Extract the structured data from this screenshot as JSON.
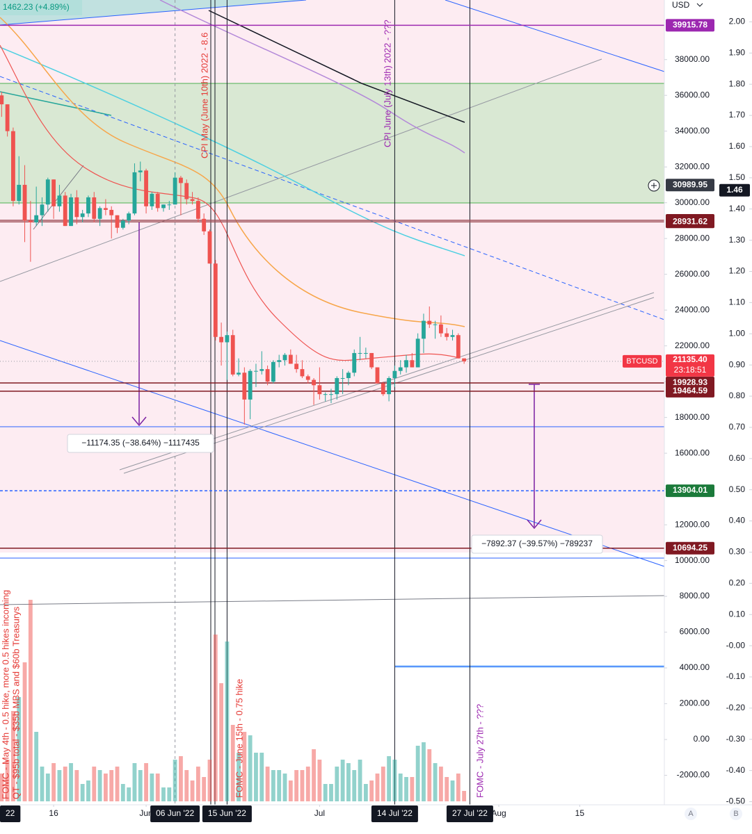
{
  "chart_data": {
    "type": "candlestick",
    "symbol_change": "1462.23 (+4.89%)",
    "currency": "USD",
    "up_color": "#26a69a",
    "down_color": "#ef5350",
    "x": [
      "2022-05-07",
      "2022-05-08",
      "2022-05-09",
      "2022-05-10",
      "2022-05-11",
      "2022-05-12",
      "2022-05-13",
      "2022-05-14",
      "2022-05-15",
      "2022-05-16",
      "2022-05-17",
      "2022-05-18",
      "2022-05-19",
      "2022-05-20",
      "2022-05-21",
      "2022-05-22",
      "2022-05-23",
      "2022-05-24",
      "2022-05-25",
      "2022-05-26",
      "2022-05-27",
      "2022-05-28",
      "2022-05-29",
      "2022-05-30",
      "2022-05-31",
      "2022-06-01",
      "2022-06-02",
      "2022-06-03",
      "2022-06-04",
      "2022-06-05",
      "2022-06-06",
      "2022-06-07",
      "2022-06-08",
      "2022-06-09",
      "2022-06-10",
      "2022-06-11",
      "2022-06-12",
      "2022-06-13",
      "2022-06-14",
      "2022-06-15",
      "2022-06-16",
      "2022-06-17",
      "2022-06-18",
      "2022-06-19",
      "2022-06-20",
      "2022-06-21",
      "2022-06-22",
      "2022-06-23",
      "2022-06-24",
      "2022-06-25",
      "2022-06-26",
      "2022-06-27",
      "2022-06-28",
      "2022-06-29",
      "2022-06-30",
      "2022-07-01",
      "2022-07-02",
      "2022-07-03",
      "2022-07-04",
      "2022-07-05",
      "2022-07-06",
      "2022-07-07",
      "2022-07-08",
      "2022-07-09",
      "2022-07-10",
      "2022-07-11",
      "2022-07-12",
      "2022-07-13",
      "2022-07-14",
      "2022-07-15",
      "2022-07-16",
      "2022-07-17",
      "2022-07-18",
      "2022-07-19",
      "2022-07-20",
      "2022-07-21",
      "2022-07-22",
      "2022-07-23",
      "2022-07-24",
      "2022-07-25",
      "2022-07-26"
    ],
    "open": [
      36000,
      35500,
      34000,
      30100,
      31000,
      29000,
      28900,
      29300,
      29900,
      31300,
      29800,
      30400,
      28700,
      30300,
      29200,
      29400,
      30300,
      29100,
      29700,
      29600,
      29300,
      28600,
      29000,
      29400,
      31700,
      31800,
      29800,
      30500,
      29700,
      29900,
      29900,
      31400,
      31100,
      30200,
      30100,
      29100,
      28400,
      26600,
      22500,
      22200,
      22600,
      20400,
      20500,
      19000,
      20600,
      20600,
      20700,
      20000,
      21100,
      21200,
      21500,
      21000,
      20700,
      20300,
      20100,
      19800,
      19300,
      19300,
      19300,
      20200,
      20200,
      20500,
      21600,
      21600,
      21600,
      20800,
      19900,
      19300,
      20200,
      20600,
      20800,
      21200,
      20800,
      22400,
      23400,
      23200,
      23200,
      22700,
      22500,
      22600,
      21300
    ],
    "high": [
      36200,
      35500,
      34200,
      32600,
      32100,
      30100,
      30900,
      30300,
      31400,
      31300,
      31000,
      30600,
      30500,
      30700,
      29600,
      30400,
      30600,
      29800,
      30200,
      29800,
      29300,
      29100,
      29500,
      32200,
      32300,
      31900,
      30600,
      30600,
      29900,
      30100,
      31700,
      31500,
      31300,
      30600,
      30300,
      29400,
      28500,
      26800,
      23300,
      22800,
      22900,
      21300,
      20800,
      20700,
      21000,
      21700,
      20900,
      21200,
      21500,
      21600,
      21800,
      21500,
      21200,
      20400,
      20200,
      20800,
      19400,
      19600,
      20300,
      20700,
      20600,
      21800,
      22500,
      21900,
      21600,
      20800,
      20000,
      20300,
      20900,
      21200,
      21500,
      21600,
      22700,
      23800,
      24200,
      23400,
      23700,
      23000,
      22900,
      22700,
      21300
    ],
    "low": [
      34800,
      33700,
      29800,
      29900,
      27800,
      26700,
      28700,
      28700,
      29500,
      29100,
      29500,
      28700,
      28700,
      28800,
      28900,
      29200,
      28900,
      28700,
      29300,
      28000,
      28300,
      28500,
      28800,
      29300,
      31200,
      29400,
      29600,
      29500,
      29500,
      29600,
      29900,
      29300,
      29900,
      29900,
      28900,
      28200,
      26600,
      22300,
      20900,
      20100,
      20300,
      20300,
      17600,
      17900,
      19700,
      20400,
      19800,
      19900,
      20800,
      20900,
      21000,
      20500,
      20200,
      19900,
      18700,
      19000,
      18900,
      18800,
      19000,
      19300,
      19800,
      20300,
      21200,
      21300,
      20700,
      19900,
      19200,
      18900,
      19700,
      20400,
      20500,
      20800,
      20800,
      21600,
      23000,
      22400,
      22500,
      22300,
      22300,
      21300,
      21000
    ],
    "close": [
      35500,
      34000,
      30100,
      31000,
      29000,
      28900,
      29300,
      29900,
      31300,
      29800,
      30400,
      28700,
      30300,
      29200,
      29400,
      30300,
      29100,
      29700,
      29600,
      29300,
      28600,
      29000,
      29400,
      31700,
      31800,
      29800,
      30500,
      29700,
      29900,
      29900,
      31400,
      31100,
      30200,
      30100,
      29100,
      28400,
      26600,
      22500,
      22200,
      22600,
      20400,
      20500,
      19000,
      20600,
      20600,
      20700,
      20000,
      21100,
      21200,
      21500,
      21000,
      20700,
      20300,
      20100,
      19800,
      19300,
      19300,
      19300,
      20200,
      20200,
      20500,
      21600,
      21600,
      21600,
      20800,
      19900,
      19300,
      20200,
      20600,
      20800,
      21200,
      20800,
      22400,
      23400,
      23200,
      23200,
      22700,
      22500,
      22600,
      21300,
      21135.4
    ],
    "volume": [
      40,
      60,
      130,
      150,
      200,
      290,
      100,
      50,
      40,
      55,
      45,
      50,
      55,
      45,
      25,
      30,
      50,
      45,
      40,
      45,
      50,
      25,
      20,
      55,
      45,
      55,
      40,
      40,
      20,
      20,
      60,
      65,
      45,
      30,
      50,
      35,
      60,
      240,
      170,
      230,
      110,
      70,
      100,
      95,
      70,
      70,
      50,
      45,
      45,
      40,
      30,
      45,
      45,
      50,
      75,
      60,
      25,
      25,
      50,
      60,
      55,
      45,
      60,
      25,
      30,
      40,
      50,
      65,
      60,
      40,
      35,
      35,
      80,
      85,
      75,
      55,
      50,
      35,
      30,
      40,
      15
    ],
    "xlim": [
      "2022-05-06",
      "2022-08-30"
    ],
    "xticks": [
      {
        "value": "2022-05-16",
        "label": "16"
      },
      {
        "value": "2022-06-01",
        "label": "Jun"
      },
      {
        "value": "2022-07-01",
        "label": "Jul"
      },
      {
        "value": "2022-08-01",
        "label": "Aug"
      },
      {
        "value": "2022-08-15",
        "label": "15"
      }
    ],
    "date_markers": [
      {
        "value": "2022-05-04",
        "label": "22"
      },
      {
        "value": "2022-06-06",
        "label": "06 Jun '22",
        "dashed": true
      },
      {
        "value": "2022-06-15",
        "label": "15 Jun '22"
      },
      {
        "value": "2022-07-14",
        "label": "14 Jul '22"
      },
      {
        "value": "2022-07-27",
        "label": "27 Jul '22"
      }
    ],
    "ylim": [
      -3650,
      41330
    ],
    "yticks": [
      {
        "value": 38000,
        "label": "38000.00"
      },
      {
        "value": 36000,
        "label": "36000.00"
      },
      {
        "value": 34000,
        "label": "34000.00"
      },
      {
        "value": 32000,
        "label": "32000.00"
      },
      {
        "value": 30000,
        "label": "30000.00"
      },
      {
        "value": 28000,
        "label": "28000.00"
      },
      {
        "value": 26000,
        "label": "26000.00"
      },
      {
        "value": 24000,
        "label": "24000.00"
      },
      {
        "value": 22000,
        "label": "22000.00"
      },
      {
        "value": 20000,
        "label": "20000.00"
      },
      {
        "value": 18000,
        "label": "18000.00"
      },
      {
        "value": 16000,
        "label": "16000.00"
      },
      {
        "value": 14000,
        "label": "14000.00"
      },
      {
        "value": 12000,
        "label": "12000.00"
      },
      {
        "value": 10000,
        "label": "10000.00"
      },
      {
        "value": 8000,
        "label": "8000.00"
      },
      {
        "value": 6000,
        "label": "6000.00"
      },
      {
        "value": 4000,
        "label": "4000.00"
      },
      {
        "value": 2000,
        "label": "2000.00"
      },
      {
        "value": 0,
        "label": "0.00"
      },
      {
        "value": -2000,
        "label": "-2000.00"
      }
    ],
    "y2lim": [
      -0.51,
      2.07
    ],
    "y2ticks": [
      {
        "value": 2,
        "label": "2.00"
      },
      {
        "value": 1.9,
        "label": "1.90"
      },
      {
        "value": 1.8,
        "label": "1.80"
      },
      {
        "value": 1.7,
        "label": "1.70"
      },
      {
        "value": 1.6,
        "label": "1.60"
      },
      {
        "value": 1.5,
        "label": "1.50"
      },
      {
        "value": 1.4,
        "label": "1.40"
      },
      {
        "value": 1.3,
        "label": "1.30"
      },
      {
        "value": 1.2,
        "label": "1.20"
      },
      {
        "value": 1.1,
        "label": "1.10"
      },
      {
        "value": 1,
        "label": "1.00"
      },
      {
        "value": 0.9,
        "label": "0.90"
      },
      {
        "value": 0.8,
        "label": "0.80"
      },
      {
        "value": 0.7,
        "label": "0.70"
      },
      {
        "value": 0.6,
        "label": "0.60"
      },
      {
        "value": 0.5,
        "label": "0.50"
      },
      {
        "value": 0.4,
        "label": "0.40"
      },
      {
        "value": 0.3,
        "label": "0.30"
      },
      {
        "value": 0.2,
        "label": "0.20"
      },
      {
        "value": 0.1,
        "label": "0.10"
      },
      {
        "value": 0,
        "label": "-0.00"
      },
      {
        "value": -0.1,
        "label": "-0.10"
      },
      {
        "value": -0.2,
        "label": "-0.20"
      },
      {
        "value": -0.3,
        "label": "-0.30"
      },
      {
        "value": -0.4,
        "label": "-0.40"
      },
      {
        "value": -0.5,
        "label": "-0.50"
      }
    ],
    "price_levels": [
      {
        "value": 39915.78,
        "color": "#9c27b0",
        "line_color": "#9c27b0"
      },
      {
        "value": 29017.16,
        "color": "#801922",
        "line_color": "#a0525a"
      },
      {
        "value": 28931.62,
        "color": "#801922",
        "line_color": "#a0525a"
      },
      {
        "value": 19928.93,
        "color": "#801922",
        "line_color": "#801922"
      },
      {
        "value": 19464.59,
        "color": "#801922",
        "line_color": "#801922"
      },
      {
        "value": 13904.01,
        "color": "#1b7a3a",
        "line_color": "#2962ff",
        "dashed": true
      },
      {
        "value": 10694.25,
        "color": "#801922",
        "line_color": "#801922"
      }
    ],
    "current": {
      "label": "BTCUSD",
      "price": {
        "value": 21135.4,
        "label": "21135.40"
      },
      "countdown": "23:18:51",
      "color": "#f23645"
    },
    "crosshair": {
      "price": 30989.95,
      "ratio": 1.46
    },
    "measures": [
      "−11174.35 (−38.64%) −1117435",
      "−7892.37 (−39.57%) −789237"
    ],
    "annotations": [
      "CPI May (June 10th) 2022 - 8.6",
      "CPI June (July 13th) 2022 - ???",
      "FOMC - May 4th - 0.5 hike, more 0.5 hikes incoming",
      "QT - $95b total - $35b MBS and $60b Treasurys",
      "FOMC - June 15th - 0.75 hike",
      "FOMC - July 27th - ???"
    ],
    "scale_buttons": [
      "A",
      "B"
    ]
  }
}
